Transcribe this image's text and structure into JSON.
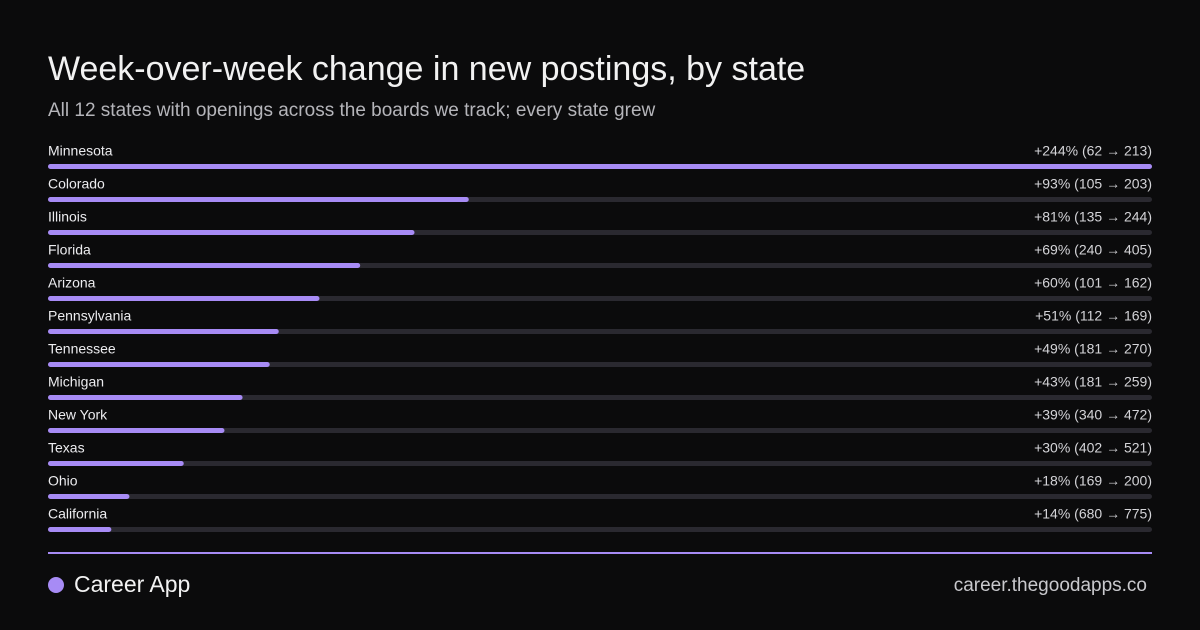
{
  "chart_data": {
    "type": "bar",
    "orientation": "horizontal",
    "title": "Week-over-week  change in new postings, by state",
    "subtitle": "All 12 states with openings across the boards we track; every state grew",
    "categories": [
      "Minnesota",
      "Colorado",
      "Illinois",
      "Florida",
      "Arizona",
      "Pennsylvania",
      "Tennessee",
      "Michigan",
      "New York",
      "Texas",
      "Ohio",
      "California"
    ],
    "values": [
      244,
      93,
      81,
      69,
      60,
      51,
      49,
      43,
      39,
      30,
      18,
      14
    ],
    "value_labels": [
      "+244% (62 → 213)",
      "+93% (105 → 203)",
      "+81% (135 → 244)",
      "+69% (240 → 405)",
      "+60% (101 → 162)",
      "+51% (112 → 169)",
      "+49% (181 → 270)",
      "+43% (181 → 259)",
      "+39% (340 → 472)",
      "+30% (402 → 521)",
      "+18% (169 → 200)",
      "+14% (680 → 775)"
    ],
    "color": "#a78bf5",
    "track_color": "#2a2930"
  },
  "footer": {
    "brand": "Career App",
    "url": "career.thegoodapps.co"
  }
}
